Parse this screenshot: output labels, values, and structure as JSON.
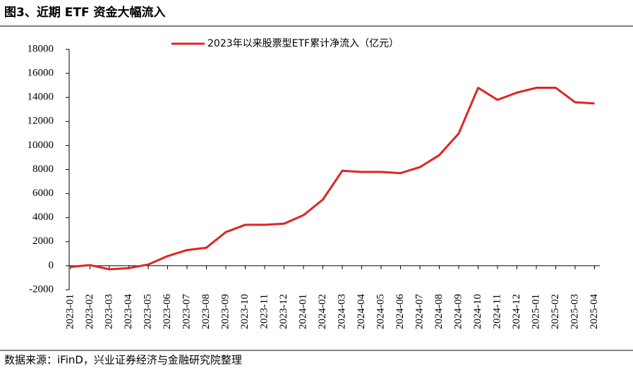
{
  "title": "图3、近期 ETF 资金大幅流入",
  "source": "数据来源：iFinD，兴业证券经济与金融研究院整理",
  "chart_data": {
    "type": "line",
    "categories": [
      "2023-01",
      "2023-02",
      "2023-03",
      "2023-04",
      "2023-05",
      "2023-06",
      "2023-07",
      "2023-08",
      "2023-09",
      "2023-10",
      "2023-11",
      "2023-12",
      "2024-01",
      "2024-02",
      "2024-03",
      "2024-04",
      "2024-05",
      "2024-06",
      "2024-07",
      "2024-08",
      "2024-09",
      "2024-10",
      "2024-11",
      "2024-12",
      "2025-01",
      "2025-02",
      "2025-03",
      "2025-04"
    ],
    "series": [
      {
        "name": "2023年以来股票型ETF累计净流入（亿元）",
        "color": "#e02424",
        "values": [
          -100,
          50,
          -300,
          -200,
          100,
          800,
          1300,
          1500,
          2800,
          3400,
          3400,
          3500,
          4200,
          5500,
          7900,
          7800,
          7800,
          7700,
          8200,
          9200,
          11000,
          14800,
          13800,
          14400,
          14800,
          14800,
          13600,
          13500
        ]
      }
    ],
    "ylim": [
      -2000,
      18000
    ],
    "yticks": [
      -2000,
      0,
      2000,
      4000,
      6000,
      8000,
      10000,
      12000,
      14000,
      16000,
      18000
    ],
    "legend": "top"
  }
}
